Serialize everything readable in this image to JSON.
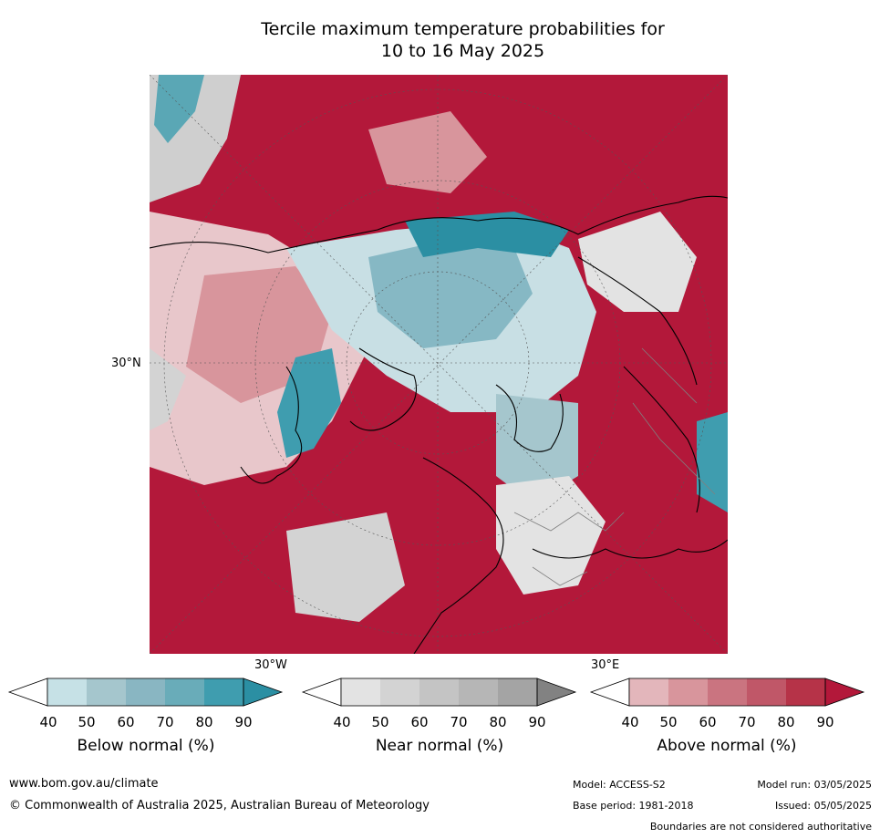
{
  "title_line1": "Tercile maximum temperature probabilities for",
  "title_line2": "10 to 16 May 2025",
  "map_labels": {
    "lat_30n": "30°N",
    "lon_30w": "30°W",
    "lon_30e": "30°E"
  },
  "legends": [
    {
      "title": "Below normal (%)",
      "ticks": [
        "40",
        "50",
        "60",
        "70",
        "80",
        "90"
      ],
      "colors": [
        "#ffffff",
        "#c6e1e6",
        "#a5c6cd",
        "#89b6c2",
        "#69acb9",
        "#3f9daf",
        "#2b8fa3"
      ]
    },
    {
      "title": "Near normal (%)",
      "ticks": [
        "40",
        "50",
        "60",
        "70",
        "80",
        "90"
      ],
      "colors": [
        "#ffffff",
        "#e3e3e3",
        "#d3d3d3",
        "#c4c4c4",
        "#b6b6b6",
        "#a4a4a4",
        "#828282"
      ]
    },
    {
      "title": "Above normal (%)",
      "ticks": [
        "40",
        "50",
        "60",
        "70",
        "80",
        "90"
      ],
      "colors": [
        "#ffffff",
        "#e3b6bb",
        "#d8959c",
        "#ca7480",
        "#c05768",
        "#b63348",
        "#b3183a"
      ]
    }
  ],
  "footer": {
    "website": "www.bom.gov.au/climate",
    "copyright": "© Commonwealth of Australia 2025, Australian Bureau of Meteorology",
    "model": "Model: ACCESS-S2",
    "base_period": "Base period: 1981-2018",
    "model_run": "Model run: 03/05/2025",
    "issued": "Issued: 05/05/2025",
    "disclaimer": "Boundaries are not considered authoritative"
  }
}
